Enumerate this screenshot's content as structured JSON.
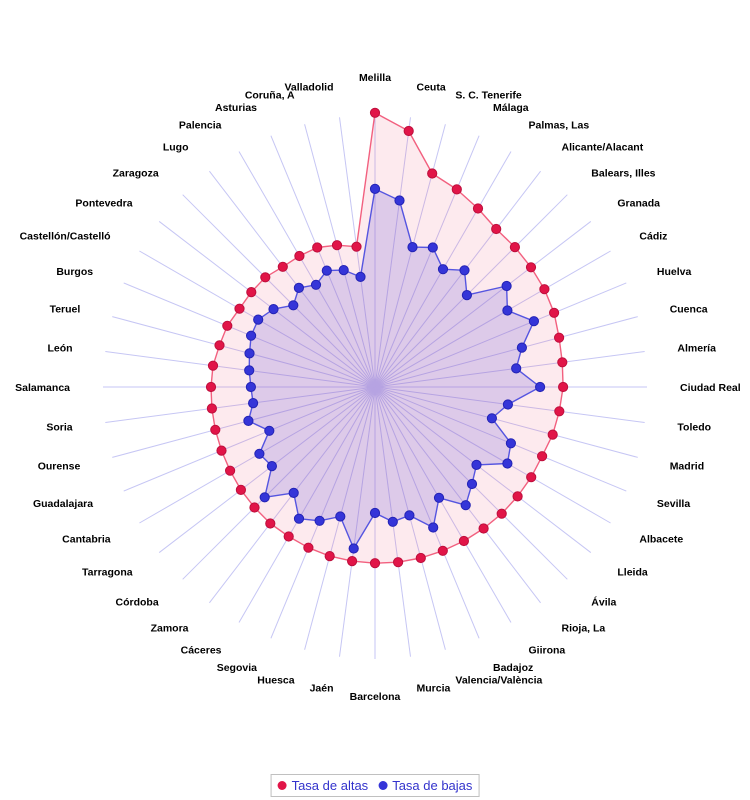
{
  "page": {
    "background": "#ffffff"
  },
  "chart_data": {
    "type": "radar",
    "title": "",
    "direction": "clockwise",
    "start_category_angle_deg": 90,
    "gridlines": false,
    "radial_tick_labels_visible": false,
    "value_scale_note": "No numeric scale shown; values are estimated as percent of full radial axis length (0-100).",
    "legend_position": "bottom-center",
    "categories": [
      "Melilla",
      "Ceuta",
      "S. C. Tenerife",
      "Málaga",
      "Palmas, Las",
      "Alicante/Alacant",
      "Balears, Illes",
      "Granada",
      "Cádiz",
      "Huelva",
      "Cuenca",
      "Almería",
      "Ciudad Real",
      "Toledo",
      "Madrid",
      "Sevilla",
      "Albacete",
      "Lleida",
      "Ávila",
      "Rioja, La",
      "Giirona",
      "Badajoz",
      "Valencia/València",
      "Murcia",
      "Barcelona",
      "Jaén",
      "Huesca",
      "Segovia",
      "Cáceres",
      "Zamora",
      "Córdoba",
      "Tarragona",
      "Cantabria",
      "Guadalajara",
      "Ourense",
      "Soria",
      "Salamanca",
      "León",
      "Teruel",
      "Burgos",
      "Castellón/Castelló",
      "Pontevedra",
      "Zaragoza",
      "Lugo",
      "Palencia",
      "Asturias",
      "Coruña, A",
      "Valladolid"
    ],
    "series": [
      {
        "name": "Tasa de altas",
        "color": "#e11548",
        "line_color": "#f2607f",
        "fill_rgba": "rgba(242,96,127,0.13)",
        "dot_stroke": "#bd0f3c",
        "values": [
          99.0,
          93.2,
          79.8,
          77.2,
          74.4,
          71.9,
          71.4,
          71.0,
          70.6,
          70.0,
          68.8,
          68.2,
          67.9,
          67.1,
          66.4,
          65.3,
          65.1,
          64.9,
          64.7,
          64.4,
          64.2,
          64.0,
          63.9,
          63.8,
          63.6,
          63.4,
          63.2,
          62.8,
          62.3,
          62.1,
          61.5,
          61.0,
          60.4,
          60.0,
          59.7,
          59.4,
          59.2,
          59.0,
          58.1,
          57.7,
          56.5,
          56.3,
          56.0,
          54.7,
          54.6,
          54.5,
          53.0,
          51.1
        ]
      },
      {
        "name": "Tasa de bajas",
        "color": "#3535d8",
        "line_color": "#5555e0",
        "fill_rgba": "rgba(108,92,220,0.22)",
        "dot_stroke": "#2323b4",
        "values": [
          71.5,
          67.9,
          52.3,
          54.5,
          49.1,
          53.1,
          46.9,
          59.9,
          55.2,
          62.1,
          54.9,
          51.4,
          59.6,
          48.4,
          43.7,
          53.1,
          55.2,
          46.2,
          49.5,
          53.8,
          46.2,
          54.9,
          48.0,
          49.1,
          45.5,
          58.8,
          48.4,
          52.3,
          54.9,
          48.2,
          56.3,
          46.9,
          48.2,
          41.3,
          47.3,
          44.4,
          44.8,
          45.8,
          46.9,
          48.4,
          48.7,
          46.2,
          41.7,
          45.1,
          42.6,
          45.5,
          43.7,
          40.1
        ]
      }
    ],
    "axis": {
      "spoke_color": "#c6c6f4"
    }
  },
  "legend": {
    "text_color": "#3333cc",
    "border_color": "#c0c0c0"
  }
}
